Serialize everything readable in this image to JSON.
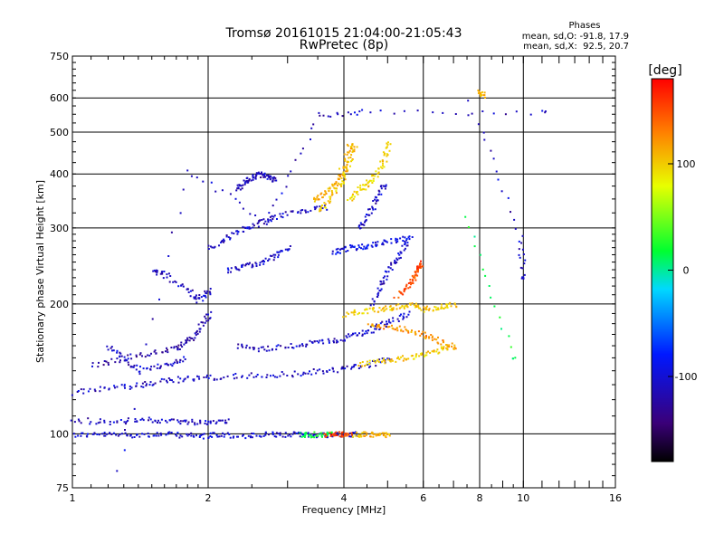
{
  "chart_data": {
    "type": "scatter",
    "title": "Tromsø 20161015 21:04:00-21:05:43",
    "subtitle": "RwPretec (8p)",
    "xlabel": "Frequency [MHz]",
    "ylabel": "Stationary phase Virtual Height [km]",
    "x_scale": "log",
    "y_scale": "log",
    "xlim": [
      1,
      16
    ],
    "ylim": [
      75,
      750
    ],
    "x_ticks": [
      1,
      2,
      4,
      6,
      8,
      10,
      16
    ],
    "x_tick_labels": [
      "1",
      "2",
      "4",
      "6",
      "8",
      "10",
      "16"
    ],
    "y_ticks": [
      75,
      100,
      200,
      300,
      400,
      500,
      600,
      750
    ],
    "y_tick_labels": [
      "75",
      "100",
      "200",
      "300",
      "400",
      "500",
      "600",
      "750"
    ],
    "grid": true,
    "stats": {
      "heading": "Phases",
      "line_o": "mean, sd,O: -91.8, 17.9",
      "line_x": "mean, sd,X:  92.5, 20.7"
    },
    "colorbar": {
      "label": "[deg]",
      "ticks": [
        100,
        0,
        -100
      ],
      "tick_labels": [
        "100",
        "0",
        "-100"
      ],
      "range": [
        -180,
        180
      ],
      "colors": [
        "#000000",
        "#3a0078",
        "#0018ff",
        "#00d8ff",
        "#00ff30",
        "#e8ff00",
        "#ff8000",
        "#ff0000"
      ]
    },
    "traces": [
      {
        "phase": -95,
        "points": [
          [
            1.0,
            100
          ],
          [
            1.15,
            100
          ],
          [
            1.3,
            100
          ],
          [
            1.5,
            100
          ],
          [
            1.7,
            100
          ],
          [
            1.9,
            99
          ],
          [
            2.1,
            100
          ],
          [
            2.4,
            99
          ],
          [
            2.7,
            100
          ],
          [
            3.0,
            100
          ],
          [
            3.3,
            100
          ],
          [
            3.6,
            100
          ],
          [
            3.9,
            100
          ],
          [
            4.2,
            100
          ]
        ]
      },
      {
        "phase": 20,
        "points": [
          [
            3.2,
            100
          ],
          [
            3.4,
            100
          ],
          [
            3.7,
            100
          ]
        ]
      },
      {
        "phase": 150,
        "points": [
          [
            3.6,
            100
          ],
          [
            3.9,
            100
          ],
          [
            4.1,
            100
          ]
        ]
      },
      {
        "phase": 110,
        "points": [
          [
            4.2,
            100
          ],
          [
            4.5,
            100
          ],
          [
            4.8,
            100
          ],
          [
            5.0,
            100
          ]
        ]
      },
      {
        "phase": -100,
        "points": [
          [
            1.0,
            108
          ],
          [
            1.2,
            107
          ],
          [
            1.4,
            108
          ],
          [
            1.6,
            108
          ],
          [
            1.8,
            107
          ],
          [
            2.0,
            107
          ],
          [
            2.2,
            108
          ]
        ]
      },
      {
        "phase": -100,
        "points": [
          [
            1.0,
            125
          ],
          [
            1.2,
            128
          ],
          [
            1.4,
            130
          ],
          [
            1.6,
            133
          ],
          [
            1.8,
            135
          ],
          [
            2.1,
            136
          ],
          [
            2.5,
            137
          ],
          [
            3.0,
            138
          ],
          [
            3.5,
            140
          ],
          [
            4.0,
            142
          ],
          [
            4.5,
            145
          ],
          [
            5.0,
            150
          ]
        ]
      },
      {
        "phase": -110,
        "points": [
          [
            1.1,
            145
          ],
          [
            1.3,
            150
          ],
          [
            1.5,
            155
          ],
          [
            1.7,
            158
          ],
          [
            1.8,
            165
          ],
          [
            1.9,
            175
          ],
          [
            2.0,
            190
          ]
        ]
      },
      {
        "phase": -100,
        "points": [
          [
            2.3,
            160
          ],
          [
            2.6,
            158
          ],
          [
            3.0,
            160
          ],
          [
            3.4,
            163
          ],
          [
            3.8,
            165
          ],
          [
            4.2,
            170
          ],
          [
            4.6,
            175
          ],
          [
            5.0,
            182
          ],
          [
            5.5,
            190
          ]
        ]
      },
      {
        "phase": 100,
        "points": [
          [
            4.0,
            190
          ],
          [
            4.4,
            193
          ],
          [
            4.8,
            195
          ],
          [
            5.2,
            198
          ],
          [
            5.6,
            200
          ],
          [
            6.0,
            195
          ],
          [
            6.5,
            198
          ],
          [
            7.0,
            200
          ]
        ]
      },
      {
        "phase": 120,
        "points": [
          [
            4.5,
            180
          ],
          [
            5.0,
            178
          ],
          [
            5.5,
            175
          ],
          [
            6.0,
            170
          ],
          [
            6.5,
            165
          ],
          [
            7.0,
            160
          ]
        ]
      },
      {
        "phase": 150,
        "points": [
          [
            5.2,
            210
          ],
          [
            5.5,
            220
          ],
          [
            5.7,
            230
          ],
          [
            5.8,
            240
          ],
          [
            5.9,
            250
          ]
        ]
      },
      {
        "phase": 100,
        "points": [
          [
            4.3,
            145
          ],
          [
            4.8,
            148
          ],
          [
            5.3,
            150
          ],
          [
            5.8,
            152
          ],
          [
            6.3,
            155
          ],
          [
            6.8,
            160
          ]
        ]
      },
      {
        "phase": -100,
        "points": [
          [
            2.2,
            240
          ],
          [
            2.4,
            245
          ],
          [
            2.6,
            250
          ],
          [
            2.8,
            260
          ],
          [
            3.0,
            270
          ]
        ]
      },
      {
        "phase": -100,
        "points": [
          [
            2.0,
            270
          ],
          [
            2.2,
            285
          ],
          [
            2.4,
            300
          ],
          [
            2.6,
            310
          ],
          [
            2.8,
            320
          ],
          [
            3.2,
            330
          ],
          [
            3.6,
            335
          ]
        ]
      },
      {
        "phase": -105,
        "points": [
          [
            2.3,
            370
          ],
          [
            2.4,
            385
          ],
          [
            2.5,
            395
          ],
          [
            2.6,
            400
          ],
          [
            2.7,
            395
          ],
          [
            2.8,
            390
          ]
        ]
      },
      {
        "phase": -100,
        "points": [
          [
            1.5,
            240
          ],
          [
            1.6,
            235
          ],
          [
            1.8,
            215
          ],
          [
            1.9,
            205
          ],
          [
            2.0,
            215
          ]
        ]
      },
      {
        "phase": 100,
        "points": [
          [
            3.5,
            330
          ],
          [
            3.7,
            350
          ],
          [
            3.9,
            380
          ],
          [
            4.0,
            400
          ],
          [
            4.1,
            430
          ],
          [
            4.2,
            470
          ]
        ]
      },
      {
        "phase": 95,
        "points": [
          [
            4.1,
            350
          ],
          [
            4.3,
            370
          ],
          [
            4.5,
            380
          ],
          [
            4.7,
            400
          ],
          [
            4.9,
            430
          ],
          [
            5.0,
            470
          ]
        ]
      },
      {
        "phase": 110,
        "points": [
          [
            3.4,
            350
          ],
          [
            3.6,
            360
          ],
          [
            3.8,
            380
          ],
          [
            4.0,
            420
          ],
          [
            4.1,
            470
          ]
        ]
      },
      {
        "phase": -100,
        "points": [
          [
            4.6,
            200
          ],
          [
            4.8,
            220
          ],
          [
            5.0,
            240
          ],
          [
            5.3,
            260
          ],
          [
            5.5,
            280
          ]
        ]
      },
      {
        "phase": -90,
        "points": [
          [
            3.8,
            265
          ],
          [
            4.0,
            270
          ],
          [
            4.3,
            272
          ],
          [
            4.6,
            275
          ],
          [
            5.0,
            280
          ],
          [
            5.6,
            285
          ]
        ]
      },
      {
        "phase": -100,
        "points": [
          [
            4.3,
            300
          ],
          [
            4.5,
            320
          ],
          [
            4.7,
            350
          ],
          [
            4.9,
            380
          ]
        ]
      },
      {
        "phase": -100,
        "points": [
          [
            1.2,
            160
          ],
          [
            1.3,
            150
          ],
          [
            1.4,
            140
          ],
          [
            1.6,
            145
          ],
          [
            1.75,
            150
          ]
        ]
      },
      {
        "phase": 110,
        "points": [
          [
            8.0,
            620
          ],
          [
            8.1,
            610
          ]
        ]
      },
      {
        "phase": -100,
        "points": [
          [
            7.6,
            590
          ],
          [
            9.8,
            285
          ],
          [
            10.0,
            230
          ]
        ]
      },
      {
        "phase": -100,
        "points": [
          [
            1.25,
            82
          ],
          [
            1.8,
            410
          ],
          [
            2.7,
            310
          ],
          [
            3.5,
            550
          ],
          [
            4.5,
            560
          ],
          [
            11.0,
            555
          ]
        ]
      },
      {
        "phase": 20,
        "points": [
          [
            7.4,
            320
          ],
          [
            9.5,
            150
          ]
        ]
      }
    ]
  }
}
